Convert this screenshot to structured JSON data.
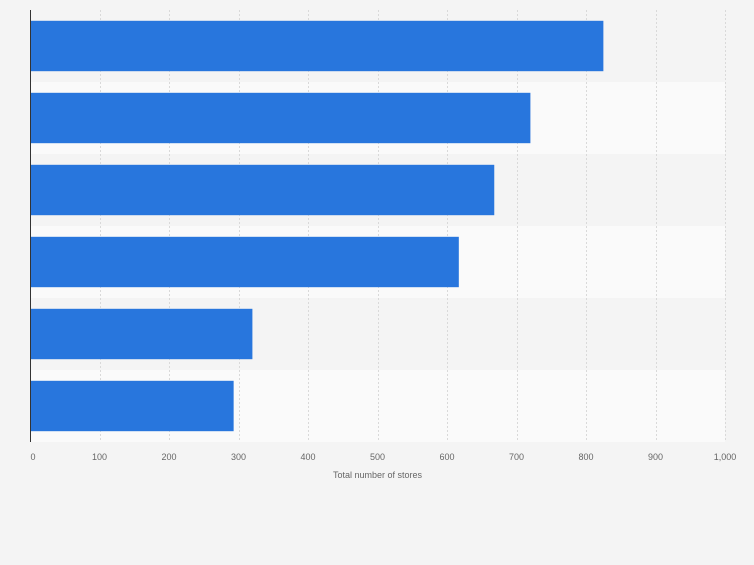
{
  "chart_data": {
    "type": "bar",
    "orientation": "horizontal",
    "title": "",
    "categories": [
      "",
      "",
      "",
      "",
      "",
      ""
    ],
    "values": [
      825,
      720,
      668,
      617,
      320,
      293
    ],
    "xlabel": "Total number of stores",
    "ylabel": "",
    "xlim": [
      0,
      1000
    ],
    "xticks": [
      0,
      100,
      200,
      300,
      400,
      500,
      600,
      700,
      800,
      900,
      1000
    ],
    "xtick_labels": [
      "0",
      "100",
      "200",
      "300",
      "400",
      "500",
      "600",
      "700",
      "800",
      "900",
      "1,000"
    ],
    "grid": true,
    "legend": "none",
    "colors": {
      "bar": "#2876dd",
      "band_odd": "#f4f4f4",
      "band_even": "#fafafa",
      "gridline": "#d9d9d9",
      "axis": "#333333",
      "tick_text": "#666666"
    }
  }
}
